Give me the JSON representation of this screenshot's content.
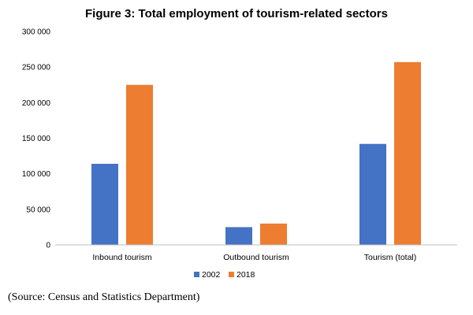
{
  "chart_data": {
    "type": "bar",
    "title": "Figure 3: Total employment of tourism-related sectors",
    "categories": [
      "Inbound tourism",
      "Outbound tourism",
      "Tourism (total)"
    ],
    "series": [
      {
        "name": "2002",
        "values": [
          114000,
          25000,
          142000
        ],
        "color": "#4472C4"
      },
      {
        "name": "2018",
        "values": [
          225000,
          30000,
          257000
        ],
        "color": "#ED7D31"
      }
    ],
    "ylim": [
      0,
      300000
    ],
    "yticks": [
      0,
      50000,
      100000,
      150000,
      200000,
      250000,
      300000
    ],
    "ytick_labels": [
      "0",
      "50 000",
      "100 000",
      "150 000",
      "200 000",
      "250 000",
      "300 000"
    ],
    "grid": false,
    "legend": "bottom-center",
    "xlabel": "",
    "ylabel": ""
  },
  "source_note": "(Source: Census and Statistics Department)"
}
